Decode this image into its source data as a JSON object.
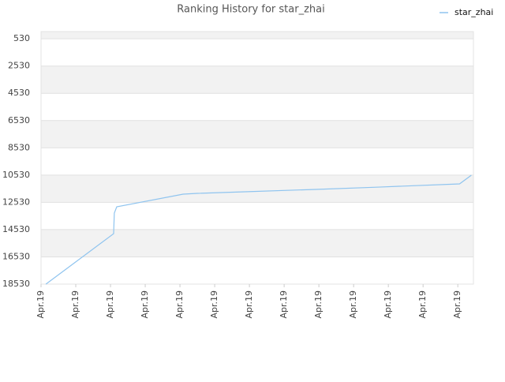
{
  "chart_data": {
    "type": "line",
    "title": "Ranking History for star_zhai",
    "x": [
      0.14,
      2.09,
      2.11,
      2.18,
      4.09,
      4.5,
      5.86,
      7.91,
      9.73,
      12.05,
      12.39
    ],
    "series": [
      {
        "name": "star_zhai",
        "color": "#8fc4ef",
        "values": [
          18530,
          14830,
          13320,
          12860,
          11930,
          11870,
          11755,
          11580,
          11410,
          11175,
          10540
        ]
      }
    ],
    "xlim": [
      0,
      12.45
    ],
    "xticks": [
      {
        "value": 0,
        "label": "Apr.19"
      },
      {
        "value": 1,
        "label": "Apr.19"
      },
      {
        "value": 2,
        "label": "Apr.19"
      },
      {
        "value": 3,
        "label": "Apr.19"
      },
      {
        "value": 4,
        "label": "Apr.19"
      },
      {
        "value": 5,
        "label": "Apr.19"
      },
      {
        "value": 6,
        "label": "Apr.19"
      },
      {
        "value": 7,
        "label": "Apr.19"
      },
      {
        "value": 8,
        "label": "Apr.19"
      },
      {
        "value": 9,
        "label": "Apr.19"
      },
      {
        "value": 10,
        "label": "Apr.19"
      },
      {
        "value": 11,
        "label": "Apr.19"
      },
      {
        "value": 12,
        "label": "Apr.19"
      }
    ],
    "ylim": [
      18530,
      0
    ],
    "yticks": [
      530,
      2530,
      4530,
      6530,
      8530,
      10530,
      12530,
      14530,
      16530,
      18530
    ],
    "grid": true,
    "legend": "top-right"
  }
}
